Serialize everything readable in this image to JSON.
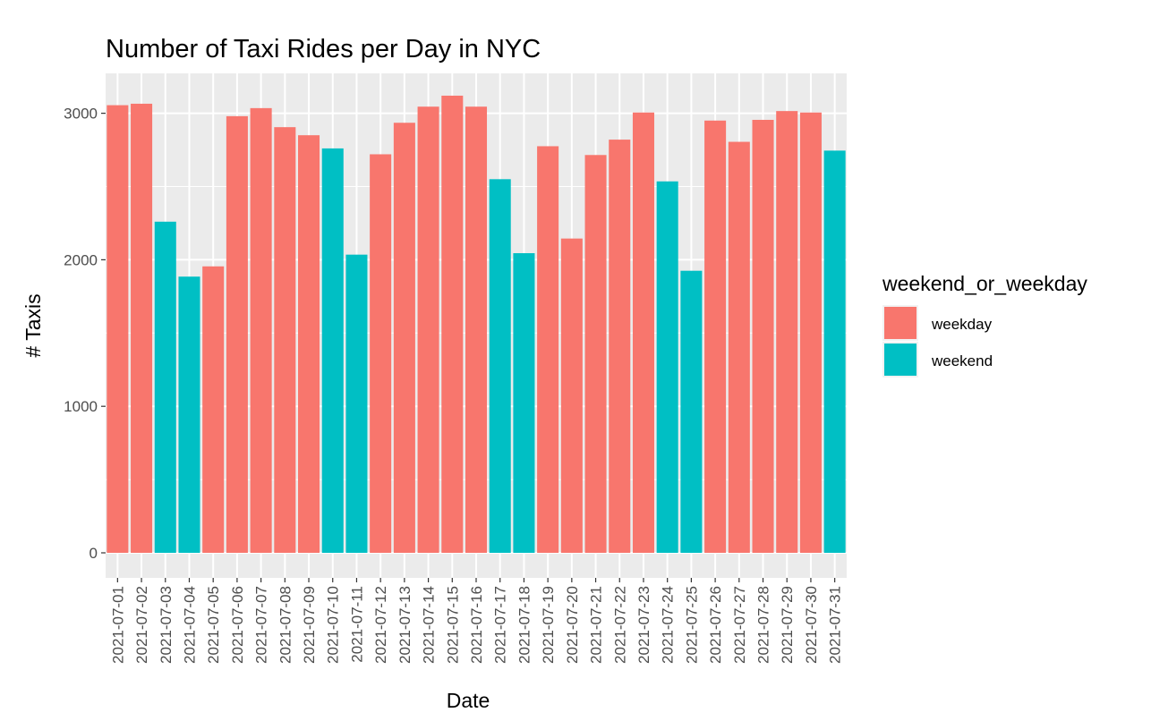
{
  "chart_data": {
    "type": "bar",
    "title": "Number of Taxi Rides per Day in NYC",
    "xlabel": "Date",
    "ylabel": "# Taxis",
    "ylim": [
      0,
      3250
    ],
    "yticks": [
      0,
      1000,
      2000,
      3000
    ],
    "grid": true,
    "legend": {
      "title": "weekend_or_weekday",
      "placement": "right",
      "entries": [
        {
          "name": "weekday",
          "color": "#F8766D"
        },
        {
          "name": "weekend",
          "color": "#00BFC4"
        }
      ]
    },
    "categories": [
      "2021-07-01",
      "2021-07-02",
      "2021-07-03",
      "2021-07-04",
      "2021-07-05",
      "2021-07-06",
      "2021-07-07",
      "2021-07-08",
      "2021-07-09",
      "2021-07-10",
      "2021-07-11",
      "2021-07-12",
      "2021-07-13",
      "2021-07-14",
      "2021-07-15",
      "2021-07-16",
      "2021-07-17",
      "2021-07-18",
      "2021-07-19",
      "2021-07-20",
      "2021-07-21",
      "2021-07-22",
      "2021-07-23",
      "2021-07-24",
      "2021-07-25",
      "2021-07-26",
      "2021-07-27",
      "2021-07-28",
      "2021-07-29",
      "2021-07-30",
      "2021-07-31"
    ],
    "values": [
      3055,
      3065,
      2260,
      1885,
      1955,
      2980,
      3035,
      2905,
      2850,
      2760,
      2035,
      2720,
      2935,
      3045,
      3120,
      3045,
      2550,
      2045,
      2775,
      2145,
      2715,
      2820,
      3005,
      2535,
      1925,
      2950,
      2805,
      2955,
      3015,
      3005,
      2745
    ],
    "groups": [
      "weekday",
      "weekday",
      "weekend",
      "weekend",
      "weekday",
      "weekday",
      "weekday",
      "weekday",
      "weekday",
      "weekend",
      "weekend",
      "weekday",
      "weekday",
      "weekday",
      "weekday",
      "weekday",
      "weekend",
      "weekend",
      "weekday",
      "weekday",
      "weekday",
      "weekday",
      "weekday",
      "weekend",
      "weekend",
      "weekday",
      "weekday",
      "weekday",
      "weekday",
      "weekday",
      "weekend"
    ]
  }
}
